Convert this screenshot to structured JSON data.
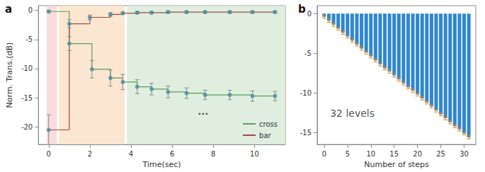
{
  "chart_data": [
    {
      "type": "line",
      "title": "a",
      "x_label": "Time(sec)",
      "y_label": "Norm. Trans.(dB)",
      "xlim": [
        -0.5,
        11.5
      ],
      "xticks": [
        0,
        2,
        4,
        6,
        8,
        10
      ],
      "ylim": [
        -23,
        0.8
      ],
      "yticks": [
        -20,
        -15,
        -10,
        -5,
        0
      ],
      "grid": false,
      "legend": "lower right",
      "marker": "circle",
      "line_style": "step",
      "series": [
        {
          "name": "cross",
          "color": "#5a9e5a",
          "x": [
            0,
            1,
            2.1,
            3.0,
            3.6,
            4.3,
            5.0,
            5.8,
            6.7,
            7.6,
            8.8,
            9.9,
            11.0
          ],
          "values": [
            -0.2,
            -5.7,
            -10.1,
            -11.6,
            -12.3,
            -13.1,
            -13.5,
            -14.0,
            -14.2,
            -14.5,
            -14.5,
            -14.7,
            -14.7
          ],
          "errors": [
            0.2,
            1.2,
            1.5,
            1.4,
            1.3,
            1.2,
            1.0,
            1.0,
            0.9,
            0.8,
            0.8,
            0.9,
            0.8
          ]
        },
        {
          "name": "bar",
          "color": "#a04848",
          "x": [
            0,
            1,
            2.0,
            3.0,
            3.6,
            4.3,
            5.0,
            5.8,
            6.7,
            7.6,
            8.8,
            9.9,
            11.0
          ],
          "values": [
            -20.5,
            -2.3,
            -1.2,
            -0.7,
            -0.5,
            -0.4,
            -0.4,
            -0.3,
            -0.3,
            -0.3,
            -0.3,
            -0.3,
            -0.3
          ],
          "errors": [
            2.6,
            0.7,
            0.4,
            0.3,
            0.2,
            0.2,
            0.2,
            0.2,
            0.2,
            0.2,
            0.2,
            0.2,
            0.2
          ]
        }
      ],
      "regions": [
        {
          "from": -0.1,
          "to": 0.4,
          "color": "#f8d8d8"
        },
        {
          "from": 0.5,
          "to": 3.7,
          "color": "#fbe4cc"
        },
        {
          "from": 3.8,
          "to": 11.5,
          "color": "#dcecdc"
        }
      ],
      "annotations": [
        {
          "text": "...",
          "x": 7.5,
          "y": -17.3
        }
      ]
    },
    {
      "type": "bar",
      "title": "b",
      "x_label": "Number of steps",
      "xlim": [
        -1.5,
        32.5
      ],
      "xticks": [
        0,
        5,
        10,
        15,
        20,
        25,
        30
      ],
      "ylim": [
        -16.5,
        1
      ],
      "yticks": [
        -15,
        -10,
        -5,
        0
      ],
      "grid": false,
      "color": "#2f86d0",
      "error_color": "#e08a20",
      "x": [
        0,
        1,
        2,
        3,
        4,
        5,
        6,
        7,
        8,
        9,
        10,
        11,
        12,
        13,
        14,
        15,
        16,
        17,
        18,
        19,
        20,
        21,
        22,
        23,
        24,
        25,
        26,
        27,
        28,
        29,
        30,
        31
      ],
      "values": [
        -0.4,
        -0.9,
        -1.4,
        -1.9,
        -2.4,
        -2.9,
        -3.4,
        -3.9,
        -4.4,
        -4.9,
        -5.4,
        -5.9,
        -6.4,
        -6.9,
        -7.3,
        -7.8,
        -8.3,
        -8.8,
        -9.3,
        -9.7,
        -10.2,
        -10.7,
        -11.2,
        -11.7,
        -12.2,
        -12.7,
        -13.2,
        -13.7,
        -14.2,
        -14.6,
        -15.1,
        -15.6
      ],
      "errors": [
        0.2,
        0.2,
        0.2,
        0.2,
        0.2,
        0.2,
        0.2,
        0.2,
        0.2,
        0.2,
        0.2,
        0.2,
        0.2,
        0.2,
        0.2,
        0.2,
        0.2,
        0.2,
        0.2,
        0.2,
        0.2,
        0.2,
        0.2,
        0.2,
        0.2,
        0.2,
        0.2,
        0.2,
        0.2,
        0.2,
        0.2,
        0.2
      ],
      "annotations": [
        {
          "text": "32 levels",
          "x": 0.5,
          "y": -12.6
        }
      ]
    }
  ]
}
